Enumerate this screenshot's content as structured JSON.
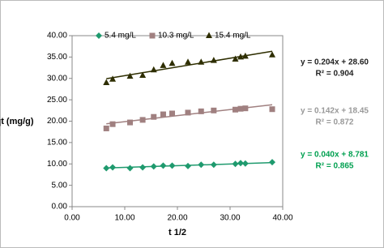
{
  "chart_data": {
    "type": "scatter",
    "x_label": "t 1/2",
    "y_label": "qt (mg/g)",
    "xlim": [
      0,
      40
    ],
    "ylim": [
      0,
      40
    ],
    "xticks": [
      {
        "value": 0,
        "label": "0.00"
      },
      {
        "value": 10,
        "label": "10.00"
      },
      {
        "value": 20,
        "label": "20.00"
      },
      {
        "value": 30,
        "label": "30.00"
      },
      {
        "value": 40,
        "label": "40.00"
      }
    ],
    "yticks": [
      {
        "value": 0,
        "label": "0.00"
      },
      {
        "value": 5,
        "label": "5.00"
      },
      {
        "value": 10,
        "label": "10.00"
      },
      {
        "value": 15,
        "label": "15.00"
      },
      {
        "value": 20,
        "label": "20.00"
      },
      {
        "value": 25,
        "label": "25.00"
      },
      {
        "value": 30,
        "label": "30.00"
      },
      {
        "value": 35,
        "label": "35.00"
      },
      {
        "value": 40,
        "label": "40.00"
      }
    ],
    "grid": false,
    "legend": "top",
    "series": [
      {
        "name": "5.4 mg/L",
        "color": "#1f9a6e",
        "marker": "diamond",
        "x": [
          6.5,
          7.7,
          11.0,
          13.4,
          15.5,
          17.3,
          19.0,
          22.0,
          24.5,
          26.9,
          31.0,
          32.0,
          32.9,
          38.0
        ],
        "values": [
          9.0,
          9.2,
          9.0,
          9.2,
          9.4,
          9.6,
          9.6,
          9.5,
          9.8,
          9.8,
          10.0,
          10.2,
          10.1,
          10.4
        ],
        "trendline": {
          "slope": 0.04,
          "intercept": 8.781,
          "label": "y = 0.040x + 8.781",
          "r2_label": "R² = 0.865",
          "color": "#00a050"
        }
      },
      {
        "name": "10.3 mg/L",
        "color": "#a08080",
        "marker": "square",
        "x": [
          6.5,
          7.7,
          11.0,
          13.4,
          15.5,
          17.3,
          19.0,
          22.0,
          24.5,
          26.9,
          31.0,
          32.0,
          32.9,
          38.0
        ],
        "values": [
          18.3,
          19.3,
          19.7,
          20.3,
          21.0,
          21.6,
          21.8,
          22.0,
          22.3,
          22.5,
          22.7,
          22.9,
          23.0,
          22.8
        ],
        "trendline": {
          "slope": 0.142,
          "intercept": 18.45,
          "label": "y = 0.142x + 18.45",
          "r2_label": "R² = 0.872",
          "color": "#999999"
        }
      },
      {
        "name": "15.4 mg/L",
        "color": "#2e2e00",
        "marker": "triangle",
        "x": [
          6.5,
          7.7,
          11.0,
          13.4,
          15.5,
          17.3,
          19.0,
          22.0,
          24.5,
          26.9,
          31.0,
          32.0,
          32.9,
          38.0
        ],
        "values": [
          29.0,
          29.8,
          30.5,
          30.7,
          32.0,
          33.0,
          33.5,
          33.8,
          33.8,
          34.2,
          34.5,
          35.0,
          35.2,
          35.5
        ],
        "trendline": {
          "slope": 0.204,
          "intercept": 28.6,
          "label": "y = 0.204x + 28.60",
          "r2_label": "R² = 0.904",
          "color": "#222222"
        }
      }
    ]
  }
}
